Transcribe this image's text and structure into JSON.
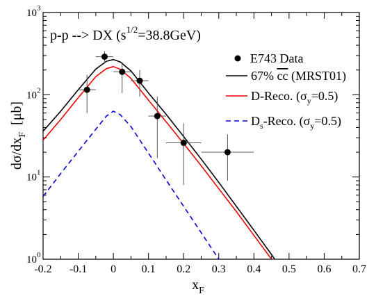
{
  "chart_data": {
    "type": "line",
    "annotation": {
      "base": "p-p --> DX   (s",
      "exp": "1/2",
      "tail": "=38.8GeV)"
    },
    "xlabel": {
      "main": "x",
      "sub": "F"
    },
    "ylabel": {
      "main": "dσ/dx",
      "sub": "F",
      "unit": "[μb]"
    },
    "xlim": [
      -0.2,
      0.7
    ],
    "ylim_log10": [
      0,
      3
    ],
    "y_scale": "log",
    "grid": false,
    "legend_position": "top-right",
    "xticks": [
      "-0.2",
      "-0.1",
      "0",
      "0.1",
      "0.2",
      "0.3",
      "0.4",
      "0.5",
      "0.6",
      "0.7"
    ],
    "yticks": [
      {
        "base": "10",
        "exp": "0"
      },
      {
        "base": "10",
        "exp": "1"
      },
      {
        "base": "10",
        "exp": "2"
      },
      {
        "base": "10",
        "exp": "3"
      }
    ],
    "data_points": {
      "name": "E743 Data",
      "points": [
        {
          "x": -0.075,
          "y": 115,
          "xerr": 0.025,
          "ylo": 60,
          "yhi": 175
        },
        {
          "x": -0.025,
          "y": 290,
          "xerr": 0.025,
          "ylo": 240,
          "yhi": 340
        },
        {
          "x": 0.025,
          "y": 190,
          "xerr": 0.025,
          "ylo": 105,
          "yhi": 250
        },
        {
          "x": 0.075,
          "y": 148,
          "xerr": 0.025,
          "ylo": 95,
          "yhi": 200
        },
        {
          "x": 0.125,
          "y": 55,
          "xerr": 0.025,
          "ylo": 17,
          "yhi": 95
        },
        {
          "x": 0.2,
          "y": 26,
          "xerr": 0.05,
          "ylo": 8,
          "yhi": 45
        },
        {
          "x": 0.325,
          "y": 20,
          "xerr": 0.075,
          "ylo": 9,
          "yhi": 33
        }
      ]
    },
    "series": [
      {
        "name": "67% cc (MRST01)",
        "name_parts": {
          "pre": "67% ",
          "over": "cc",
          "post": " (MRST01)"
        },
        "color": "#000000",
        "dash": "solid",
        "x": [
          -0.2,
          -0.15,
          -0.1,
          -0.05,
          -0.02,
          0.0,
          0.02,
          0.05,
          0.1,
          0.15,
          0.2,
          0.25,
          0.3,
          0.35,
          0.4,
          0.45,
          0.475
        ],
        "y": [
          36,
          63,
          115,
          205,
          255,
          268,
          250,
          195,
          105,
          58,
          31,
          16.5,
          8.6,
          4.4,
          2.25,
          1.14,
          0.8
        ]
      },
      {
        "name": "D-Reco. (σy=0.5)",
        "name_parts": {
          "pre": "D-Reco. (σ",
          "sub": "y",
          "post": "=0.5)"
        },
        "color": "#ee0000",
        "dash": "solid",
        "x": [
          -0.2,
          -0.15,
          -0.1,
          -0.05,
          -0.02,
          0.0,
          0.02,
          0.05,
          0.1,
          0.15,
          0.2,
          0.25,
          0.3,
          0.35,
          0.4,
          0.45,
          0.475
        ],
        "y": [
          28,
          50,
          92,
          166,
          208,
          220,
          204,
          158,
          86,
          47,
          25.5,
          13.7,
          7.2,
          3.8,
          1.95,
          1.0,
          0.7
        ]
      },
      {
        "name": "Ds-Reco. (σy=0.5)",
        "name_parts": {
          "pre": "D",
          "sub1": "s",
          "mid": "-Reco. (σ",
          "sub2": "y",
          "post": "=0.5)"
        },
        "color": "#0000dd",
        "dash": "dashed",
        "x": [
          -0.2,
          -0.15,
          -0.1,
          -0.05,
          -0.02,
          0.0,
          0.02,
          0.05,
          0.1,
          0.15,
          0.2,
          0.25,
          0.3,
          0.33
        ],
        "y": [
          5.8,
          11,
          20.5,
          38,
          55,
          63,
          57,
          41,
          19.5,
          9.2,
          4.4,
          2.1,
          1.0,
          0.8
        ]
      }
    ]
  }
}
